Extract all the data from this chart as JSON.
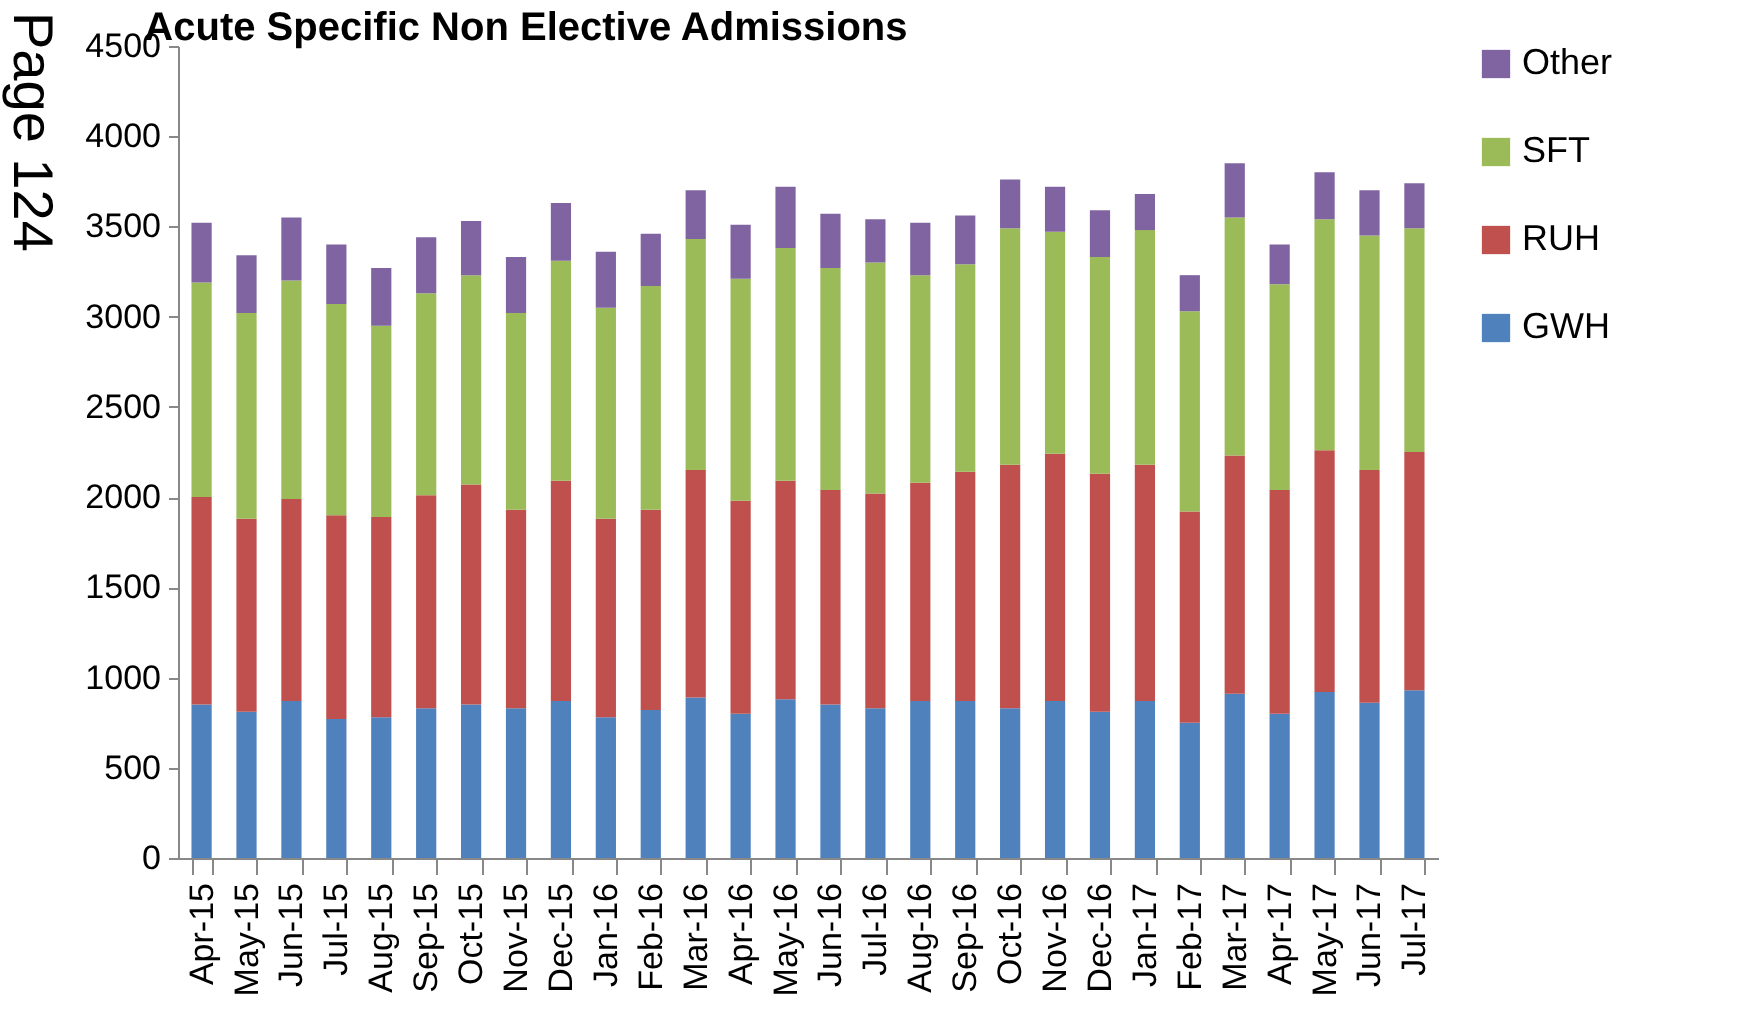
{
  "chart_data": {
    "type": "bar",
    "title": "Acute Specific Non Elective Admissions",
    "stacked": true,
    "categories": [
      "Apr-15",
      "May-15",
      "Jun-15",
      "Jul-15",
      "Aug-15",
      "Sep-15",
      "Oct-15",
      "Nov-15",
      "Dec-15",
      "Jan-16",
      "Feb-16",
      "Mar-16",
      "Apr-16",
      "May-16",
      "Jun-16",
      "Jul-16",
      "Aug-16",
      "Sep-16",
      "Oct-16",
      "Nov-16",
      "Dec-16",
      "Jan-17",
      "Feb-17",
      "Mar-17",
      "Apr-17",
      "May-17",
      "Jun-17",
      "Jul-17"
    ],
    "series": [
      {
        "name": "GWH",
        "color": "#4f81bd",
        "values": [
          850,
          810,
          870,
          770,
          780,
          830,
          850,
          830,
          870,
          780,
          820,
          890,
          800,
          880,
          850,
          830,
          870,
          870,
          830,
          870,
          810,
          870,
          750,
          910,
          800,
          920,
          860,
          930
        ]
      },
      {
        "name": "RUH",
        "color": "#c0504d",
        "values": [
          1150,
          1070,
          1120,
          1130,
          1110,
          1180,
          1220,
          1100,
          1220,
          1100,
          1110,
          1260,
          1180,
          1210,
          1190,
          1190,
          1210,
          1270,
          1350,
          1370,
          1320,
          1310,
          1170,
          1320,
          1240,
          1340,
          1290,
          1320
        ]
      },
      {
        "name": "SFT",
        "color": "#9bbb59",
        "values": [
          1190,
          1140,
          1210,
          1170,
          1060,
          1120,
          1160,
          1090,
          1220,
          1170,
          1240,
          1280,
          1230,
          1290,
          1230,
          1280,
          1150,
          1150,
          1310,
          1230,
          1200,
          1300,
          1110,
          1320,
          1140,
          1280,
          1300,
          1240
        ]
      },
      {
        "name": "Other",
        "color": "#8064a2",
        "values": [
          330,
          320,
          350,
          330,
          320,
          310,
          300,
          310,
          320,
          310,
          290,
          270,
          300,
          340,
          300,
          240,
          290,
          270,
          270,
          250,
          260,
          200,
          200,
          300,
          220,
          260,
          250,
          250
        ]
      }
    ],
    "ylim": [
      0,
      4500
    ],
    "yticks": [
      0,
      500,
      1000,
      1500,
      2000,
      2500,
      3000,
      3500,
      4000,
      4500
    ],
    "legend": "right",
    "annotations": [
      "Page 124"
    ]
  }
}
